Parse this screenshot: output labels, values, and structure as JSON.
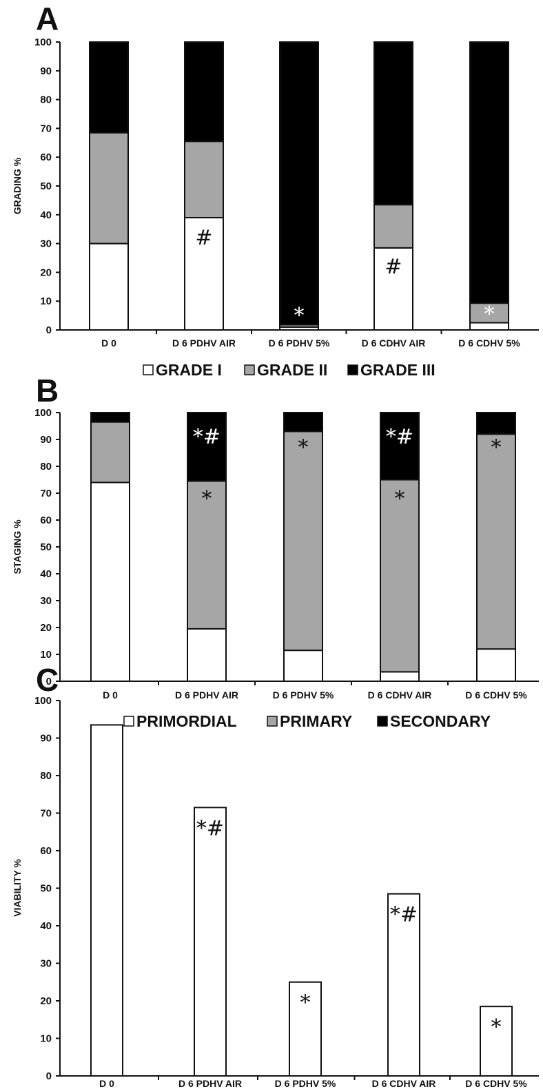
{
  "chart_data": [
    {
      "panel": "A",
      "type": "bar",
      "stacked": true,
      "ylabel": "GRADING %",
      "ylim": [
        0,
        100
      ],
      "yticks": [
        0,
        10,
        20,
        30,
        40,
        50,
        60,
        70,
        80,
        90,
        100
      ],
      "categories": [
        "D 0",
        "D 6 PDHV AIR",
        "D 6 PDHV 5%",
        "D 6 CDHV AIR",
        "D 6 CDHV 5%"
      ],
      "series": [
        {
          "name": "GRADE I",
          "color": "#ffffff",
          "values": [
            30,
            39,
            1,
            28.5,
            2.5
          ]
        },
        {
          "name": "GRADE II",
          "color": "#a6a6a6",
          "values": [
            38.5,
            26.5,
            0.8,
            15,
            6.8
          ]
        },
        {
          "name": "GRADE III",
          "color": "#000000",
          "values": [
            31.5,
            34.5,
            98.2,
            56.5,
            90.7
          ]
        }
      ],
      "annotations": [
        {
          "category": "D 6 PDHV AIR",
          "text": "#",
          "at": 32,
          "color": "#111111"
        },
        {
          "category": "D 6 PDHV 5%",
          "text": "*",
          "at": 5,
          "color": "#ffffff"
        },
        {
          "category": "D 6 CDHV AIR",
          "text": "#",
          "at": 22,
          "color": "#111111"
        },
        {
          "category": "D 6 CDHV 5%",
          "text": "*",
          "at": 5.5,
          "color": "#ffffff"
        }
      ],
      "legend": "bottom"
    },
    {
      "panel": "B",
      "type": "bar",
      "stacked": true,
      "ylabel": "STAGING %",
      "ylim": [
        0,
        100
      ],
      "yticks": [
        0,
        10,
        20,
        30,
        40,
        50,
        60,
        70,
        80,
        90,
        100
      ],
      "categories": [
        "D 0",
        "D 6 PDHV AIR",
        "D 6 PDHV 5%",
        "D 6 CDHV AIR",
        "D 6 CDHV 5%"
      ],
      "series": [
        {
          "name": "PRIMORDIAL",
          "color": "#ffffff",
          "values": [
            74,
            19.5,
            11.5,
            3.5,
            12
          ]
        },
        {
          "name": "PRIMARY",
          "color": "#a6a6a6",
          "values": [
            22.5,
            55,
            81.5,
            71.5,
            80
          ]
        },
        {
          "name": "SECONDARY",
          "color": "#000000",
          "values": [
            3.5,
            25.5,
            7,
            25,
            8
          ]
        }
      ],
      "annotations": [
        {
          "category": "D 6 PDHV AIR",
          "text": "*#",
          "at": 91,
          "color": "#ffffff"
        },
        {
          "category": "D 6 PDHV AIR",
          "text": "*",
          "at": 68,
          "color": "#111111"
        },
        {
          "category": "D 6 PDHV 5%",
          "text": "*",
          "at": 87,
          "color": "#111111"
        },
        {
          "category": "D 6 CDHV AIR",
          "text": "*#",
          "at": 91,
          "color": "#ffffff"
        },
        {
          "category": "D 6 CDHV AIR",
          "text": "*",
          "at": 68,
          "color": "#111111"
        },
        {
          "category": "D 6 CDHV 5%",
          "text": "*",
          "at": 87,
          "color": "#111111"
        }
      ],
      "legend": "bottom"
    },
    {
      "panel": "C",
      "type": "bar",
      "stacked": false,
      "ylabel": "VIABILITY %",
      "ylim": [
        0,
        100
      ],
      "yticks": [
        0,
        10,
        20,
        30,
        40,
        50,
        60,
        70,
        80,
        90,
        100
      ],
      "categories": [
        "D 0",
        "D 6 PDHV AIR",
        "D 6 PDHV 5%",
        "D 6 CDHV AIR",
        "D 6 CDHV 5%"
      ],
      "series": [
        {
          "name": "",
          "color": "#ffffff",
          "values": [
            93.5,
            71.5,
            25,
            48.5,
            18.5
          ]
        }
      ],
      "annotations": [
        {
          "category": "D 6 PDHV AIR",
          "text": "*#",
          "at": 66,
          "color": "#111111"
        },
        {
          "category": "D 6 PDHV 5%",
          "text": "*",
          "at": 19.5,
          "color": "#111111"
        },
        {
          "category": "D 6 CDHV AIR",
          "text": "*#",
          "at": 43,
          "color": "#111111"
        },
        {
          "category": "D 6 CDHV 5%",
          "text": "*",
          "at": 13,
          "color": "#111111"
        }
      ],
      "legend": "none"
    }
  ]
}
